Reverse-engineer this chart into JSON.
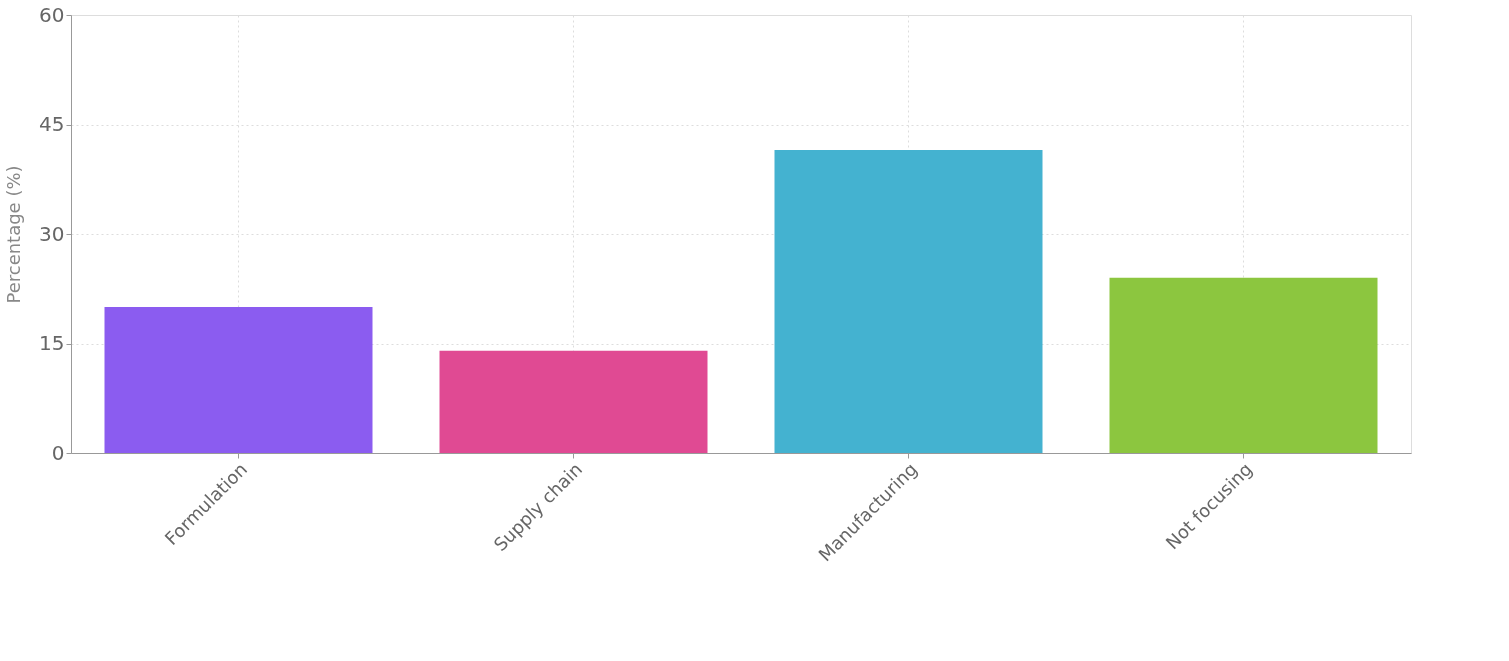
{
  "chart_data": {
    "type": "bar",
    "ylabel": "Percentage (%)",
    "categories": [
      "Formulation",
      "Supply chain",
      "Manufacturing",
      "Not focusing"
    ],
    "values": [
      20,
      14,
      41.5,
      24
    ],
    "colors": [
      "#8b5cf0",
      "#e04a93",
      "#44b2d0",
      "#8cc63f"
    ],
    "ylim": [
      0,
      60
    ],
    "yticks": [
      0,
      15,
      30,
      45,
      60
    ],
    "grid": true
  }
}
